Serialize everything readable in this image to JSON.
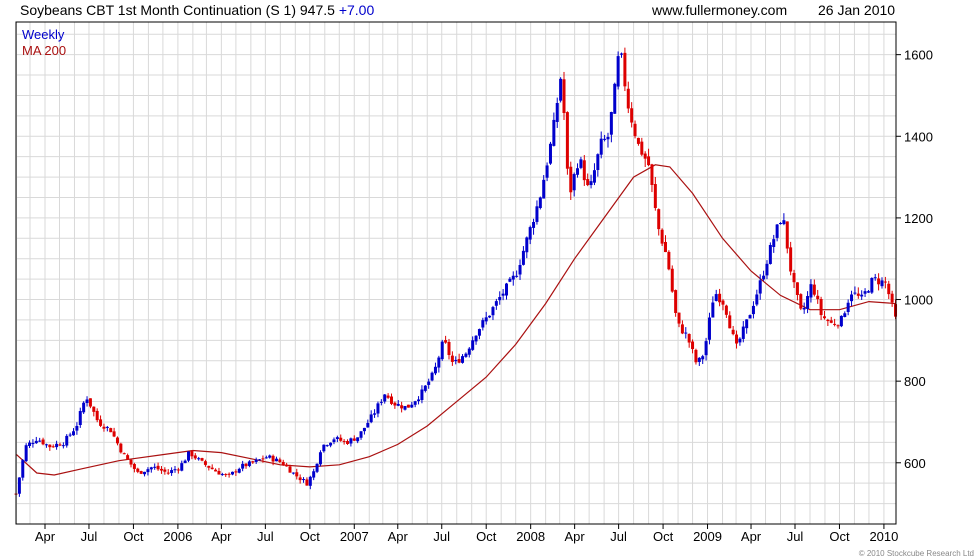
{
  "header": {
    "title": "Soybeans CBT 1st Month Continuation (S 1) 947.5",
    "change": "+7.00",
    "site": "www.fullermoney.com",
    "date": "26 Jan 2010"
  },
  "legend": {
    "weekly": "Weekly",
    "ma": "MA 200"
  },
  "credit": "© 2010 Stockcube Research Ltd",
  "colors": {
    "up": "#0000cc",
    "down": "#dd0000",
    "ma": "#aa1111",
    "grid": "#d9d9d9",
    "frame": "#000000"
  },
  "chart_data": {
    "type": "candlestick",
    "frequency": "weekly",
    "x_range": [
      "2005-01-31",
      "2010-01-26"
    ],
    "ylim": [
      450,
      1680
    ],
    "y_ticks": [
      600,
      800,
      1000,
      1200,
      1400,
      1600
    ],
    "x_ticks": [
      {
        "label": "Apr",
        "date": "2005-04-01"
      },
      {
        "label": "Jul",
        "date": "2005-07-01"
      },
      {
        "label": "Oct",
        "date": "2005-10-01"
      },
      {
        "label": "2006",
        "date": "2006-01-01"
      },
      {
        "label": "Apr",
        "date": "2006-04-01"
      },
      {
        "label": "Jul",
        "date": "2006-07-01"
      },
      {
        "label": "Oct",
        "date": "2006-10-01"
      },
      {
        "label": "2007",
        "date": "2007-01-01"
      },
      {
        "label": "Apr",
        "date": "2007-04-01"
      },
      {
        "label": "Jul",
        "date": "2007-07-01"
      },
      {
        "label": "Oct",
        "date": "2007-10-01"
      },
      {
        "label": "2008",
        "date": "2008-01-01"
      },
      {
        "label": "Apr",
        "date": "2008-04-01"
      },
      {
        "label": "Jul",
        "date": "2008-07-01"
      },
      {
        "label": "Oct",
        "date": "2008-10-01"
      },
      {
        "label": "2009",
        "date": "2009-01-01"
      },
      {
        "label": "Apr",
        "date": "2009-04-01"
      },
      {
        "label": "Jul",
        "date": "2009-07-01"
      },
      {
        "label": "Oct",
        "date": "2009-10-01"
      },
      {
        "label": "2010",
        "date": "2010-01-01"
      }
    ],
    "price_path": [
      [
        "2005-02-01",
        530
      ],
      [
        "2005-02-20",
        640
      ],
      [
        "2005-03-15",
        660
      ],
      [
        "2005-04-10",
        640
      ],
      [
        "2005-05-10",
        650
      ],
      [
        "2005-06-05",
        690
      ],
      [
        "2005-06-25",
        765
      ],
      [
        "2005-07-20",
        700
      ],
      [
        "2005-08-15",
        680
      ],
      [
        "2005-09-10",
        620
      ],
      [
        "2005-10-10",
        575
      ],
      [
        "2005-11-10",
        590
      ],
      [
        "2005-12-10",
        575
      ],
      [
        "2006-01-05",
        590
      ],
      [
        "2006-01-25",
        625
      ],
      [
        "2006-02-20",
        600
      ],
      [
        "2006-03-20",
        580
      ],
      [
        "2006-04-15",
        565
      ],
      [
        "2006-05-10",
        590
      ],
      [
        "2006-06-05",
        600
      ],
      [
        "2006-07-05",
        615
      ],
      [
        "2006-08-05",
        600
      ],
      [
        "2006-09-01",
        570
      ],
      [
        "2006-09-25",
        550
      ],
      [
        "2006-10-10",
        580
      ],
      [
        "2006-10-25",
        640
      ],
      [
        "2006-11-20",
        660
      ],
      [
        "2006-12-15",
        650
      ],
      [
        "2007-01-10",
        665
      ],
      [
        "2007-02-10",
        720
      ],
      [
        "2007-03-05",
        770
      ],
      [
        "2007-03-25",
        745
      ],
      [
        "2007-04-20",
        735
      ],
      [
        "2007-05-20",
        770
      ],
      [
        "2007-06-15",
        820
      ],
      [
        "2007-07-05",
        900
      ],
      [
        "2007-07-25",
        840
      ],
      [
        "2007-08-20",
        870
      ],
      [
        "2007-09-10",
        920
      ],
      [
        "2007-10-05",
        960
      ],
      [
        "2007-11-01",
        1010
      ],
      [
        "2007-12-01",
        1060
      ],
      [
        "2007-12-25",
        1150
      ],
      [
        "2008-01-20",
        1250
      ],
      [
        "2008-02-15",
        1400
      ],
      [
        "2008-03-05",
        1560
      ],
      [
        "2008-03-20",
        1250
      ],
      [
        "2008-04-10",
        1350
      ],
      [
        "2008-05-01",
        1260
      ],
      [
        "2008-05-25",
        1380
      ],
      [
        "2008-06-10",
        1400
      ],
      [
        "2008-06-25",
        1530
      ],
      [
        "2008-07-03",
        1620
      ],
      [
        "2008-07-20",
        1480
      ],
      [
        "2008-08-10",
        1380
      ],
      [
        "2008-09-01",
        1330
      ],
      [
        "2008-09-20",
        1180
      ],
      [
        "2008-10-10",
        1100
      ],
      [
        "2008-10-30",
        940
      ],
      [
        "2008-11-20",
        910
      ],
      [
        "2008-12-10",
        840
      ],
      [
        "2008-12-25",
        870
      ],
      [
        "2009-01-15",
        1020
      ],
      [
        "2009-02-05",
        990
      ],
      [
        "2009-03-01",
        880
      ],
      [
        "2009-03-25",
        950
      ],
      [
        "2009-04-20",
        1040
      ],
      [
        "2009-05-15",
        1140
      ],
      [
        "2009-06-05",
        1210
      ],
      [
        "2009-06-25",
        1050
      ],
      [
        "2009-07-15",
        960
      ],
      [
        "2009-08-05",
        1040
      ],
      [
        "2009-08-25",
        960
      ],
      [
        "2009-09-15",
        940
      ],
      [
        "2009-10-05",
        950
      ],
      [
        "2009-10-25",
        1020
      ],
      [
        "2009-11-15",
        1000
      ],
      [
        "2009-12-10",
        1050
      ],
      [
        "2010-01-05",
        1040
      ],
      [
        "2010-01-26",
        947.5
      ]
    ],
    "ma_path": [
      [
        "2005-02-01",
        620
      ],
      [
        "2005-03-15",
        575
      ],
      [
        "2005-04-20",
        570
      ],
      [
        "2005-06-15",
        585
      ],
      [
        "2005-09-01",
        605
      ],
      [
        "2005-12-01",
        620
      ],
      [
        "2006-02-01",
        630
      ],
      [
        "2006-04-01",
        625
      ],
      [
        "2006-06-01",
        610
      ],
      [
        "2006-08-01",
        595
      ],
      [
        "2006-10-01",
        590
      ],
      [
        "2006-12-01",
        595
      ],
      [
        "2007-02-01",
        615
      ],
      [
        "2007-04-01",
        645
      ],
      [
        "2007-06-01",
        690
      ],
      [
        "2007-08-01",
        750
      ],
      [
        "2007-10-01",
        810
      ],
      [
        "2007-12-01",
        890
      ],
      [
        "2008-02-01",
        990
      ],
      [
        "2008-04-01",
        1100
      ],
      [
        "2008-06-01",
        1200
      ],
      [
        "2008-08-01",
        1300
      ],
      [
        "2008-09-15",
        1330
      ],
      [
        "2008-10-15",
        1325
      ],
      [
        "2008-12-01",
        1260
      ],
      [
        "2009-02-01",
        1150
      ],
      [
        "2009-04-01",
        1070
      ],
      [
        "2009-06-01",
        1010
      ],
      [
        "2009-08-01",
        975
      ],
      [
        "2009-10-01",
        975
      ],
      [
        "2009-12-01",
        995
      ],
      [
        "2010-01-26",
        990
      ]
    ]
  }
}
